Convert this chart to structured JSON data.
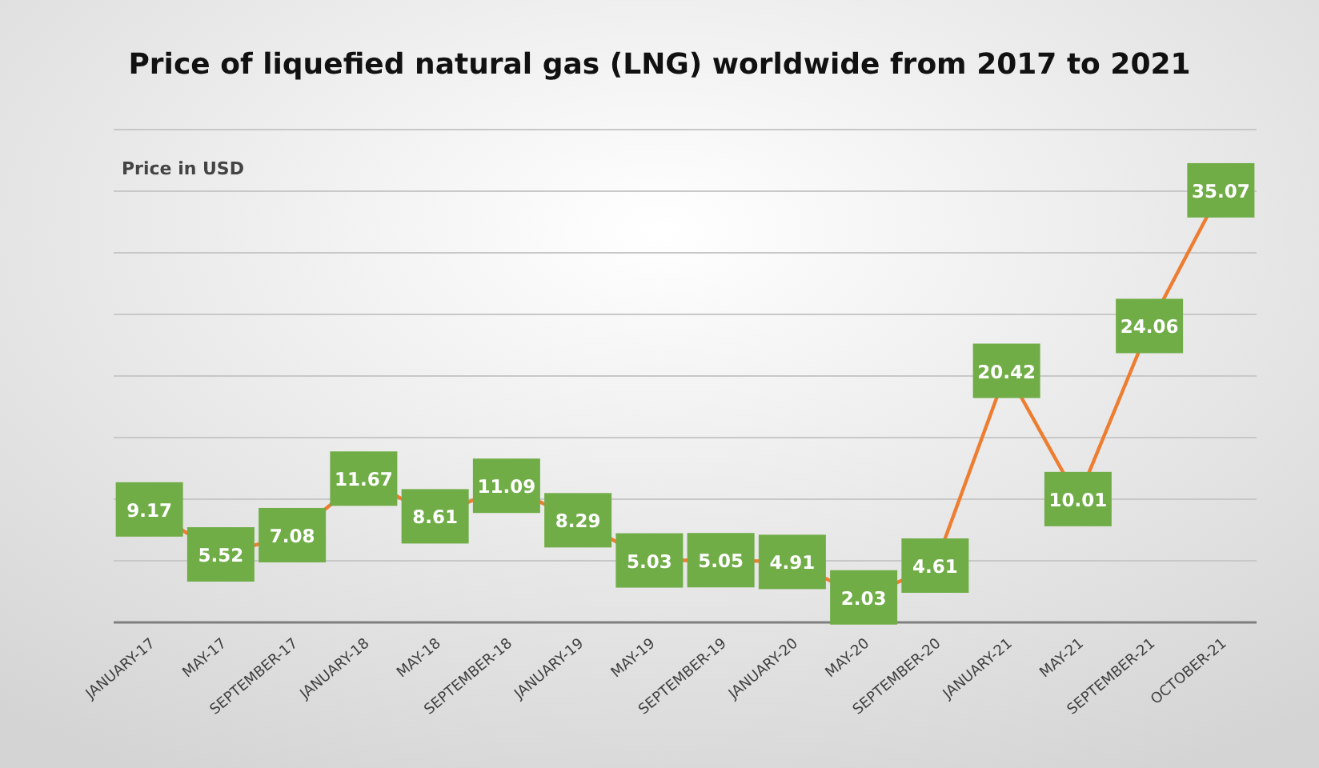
{
  "chart_data": {
    "type": "line",
    "title": "Price of liquefied natural gas (LNG) worldwide from 2017 to 2021",
    "ylabel": "Price in USD",
    "categories": [
      "JANUARY-17",
      "MAY-17",
      "SEPTEMBER-17",
      "JANUARY-18",
      "MAY-18",
      "SEPTEMBER-18",
      "JANUARY-19",
      "MAY-19",
      "SEPTEMBER-19",
      "JANUARY-20",
      "MAY-20",
      "SEPTEMBER-20",
      "JANUARY-21",
      "MAY-21",
      "SEPTEMBER-21",
      "OCTOBER-21"
    ],
    "series": [
      {
        "color": "#ed7d31",
        "values": [
          9.17,
          5.52,
          7.08,
          11.67,
          8.61,
          11.09,
          8.29,
          5.03,
          5.05,
          4.91,
          2.03,
          4.61,
          20.42,
          10.01,
          24.06,
          35.07
        ]
      }
    ],
    "ylim": [
      0,
      40
    ],
    "yticks": [
      {
        "value": 0,
        "label": null
      },
      {
        "value": 5,
        "label": null
      },
      {
        "value": 10,
        "label": null
      },
      {
        "value": 15,
        "label": null
      },
      {
        "value": 20,
        "label": null
      },
      {
        "value": 25,
        "label": null
      },
      {
        "value": 30,
        "label": null
      },
      {
        "value": 35,
        "label": null
      },
      {
        "value": 40,
        "label": null
      }
    ],
    "tick_labels": "x",
    "grid": "y",
    "marker": "square",
    "line_style": "solid",
    "data_labels": true
  }
}
